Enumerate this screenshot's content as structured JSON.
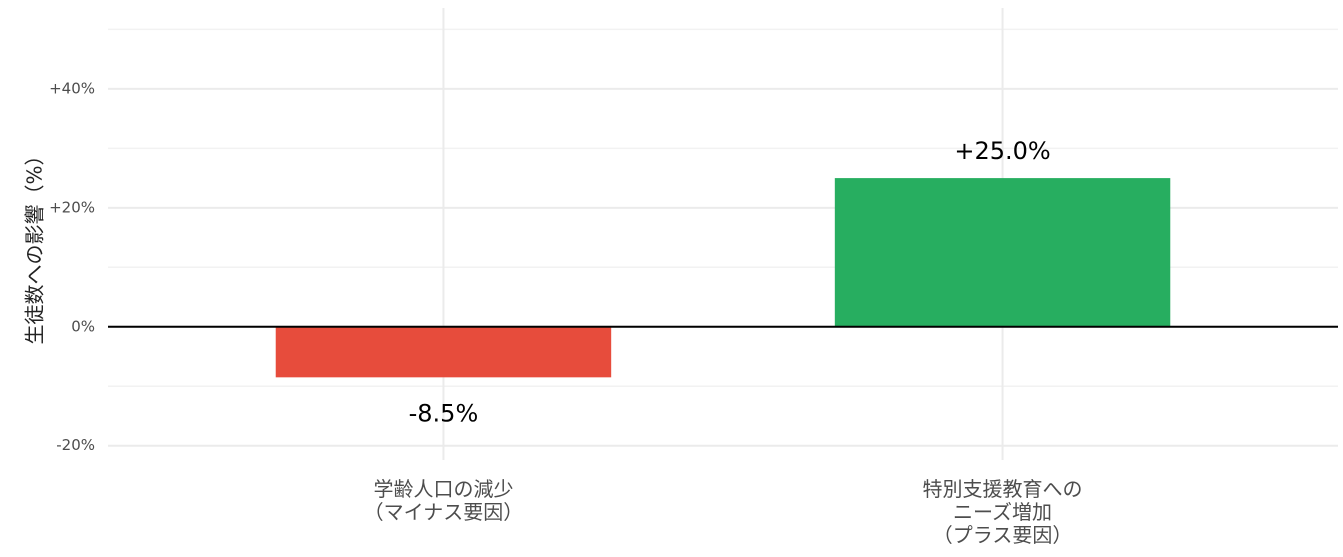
{
  "chart_data": {
    "type": "bar",
    "y_label": "生徒数への影響（%）",
    "categories": [
      "学齢人口の減少\n（マイナス要因）",
      "特別支援教育への\nニーズ増加\n（プラス要因）"
    ],
    "values": [
      -8.5,
      25.0
    ],
    "value_labels": [
      "-8.5%",
      "+25.0%"
    ],
    "colors": [
      "#e74c3c",
      "#27ae60"
    ],
    "ylim": [
      -22.4,
      53.6
    ],
    "yticks": [
      {
        "value": -20,
        "label": "-20%"
      },
      {
        "value": 0,
        "label": "0%"
      },
      {
        "value": 20,
        "label": "+20%"
      },
      {
        "value": 40,
        "label": "+40%"
      }
    ],
    "y_minor_ticks": [
      -10,
      10,
      30,
      50
    ],
    "grid": true
  }
}
